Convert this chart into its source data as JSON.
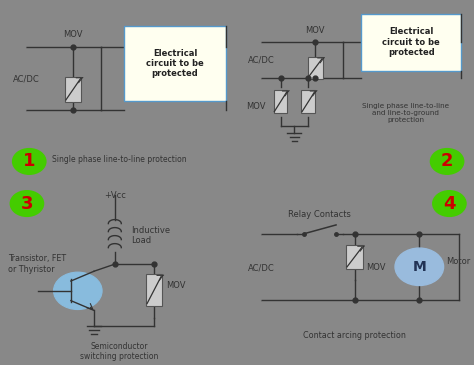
{
  "bg_color": "#f5f299",
  "border_color": "#888888",
  "line_color": "#333333",
  "mov_fill": "#cccccc",
  "mov_border": "#555555",
  "terminal_color": "#888888",
  "box_fill": "#fffff0",
  "box_border": "#5599cc",
  "green_circle": "#44cc00",
  "red_num_color": "#cc0000",
  "motor_fill": "#99bbdd",
  "transistor_fill": "#88bbdd",
  "panel1_label": "Single phase line-to-line protection",
  "panel2_label": "Single phase line-to-line\nand line-to-ground\nprotection",
  "panel3_label": "Semiconductor\nswitching protection",
  "panel4_label": "Contact arcing protection",
  "acdc_label": "AC/DC",
  "mov_label": "MOV",
  "elec_box_label": "Electrical\ncircuit to be\nprotected",
  "inductive_label": "Inductive\nLoad",
  "transistor_label": "Transistor, FET\nor Thyristor",
  "vcc_label": "+Vcc",
  "relay_label": "Relay Contacts",
  "motor_label": "Motor",
  "font_size_small": 6.0,
  "font_size_num": 13
}
